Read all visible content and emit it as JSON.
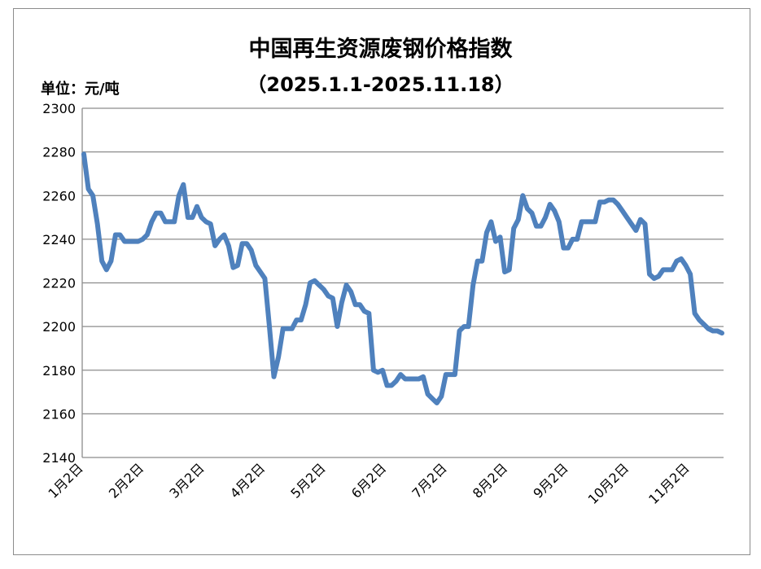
{
  "chart_data": {
    "type": "line",
    "title": "中国再生资源废钢价格指数",
    "subtitle": "（2025.1.1-2025.11.18）",
    "unit_label": "单位：元/吨",
    "xlabel": "",
    "ylabel": "",
    "ylim": [
      2140,
      2300
    ],
    "yticks": [
      2140,
      2160,
      2180,
      2200,
      2220,
      2240,
      2260,
      2280,
      2300
    ],
    "x_tick_labels": [
      "1月2日",
      "2月2日",
      "3月2日",
      "4月2日",
      "5月2日",
      "6月2日",
      "7月2日",
      "8月2日",
      "9月2日",
      "10月2日",
      "11月2日"
    ],
    "grid": true,
    "legend": "none",
    "colors": {
      "line": "#4f81bd",
      "grid": "#8c8c8c",
      "axis": "#8c8c8c"
    },
    "series": [
      {
        "values": [
          2279,
          2263,
          2260,
          2247,
          2230,
          2226,
          2230,
          2242,
          2242,
          2239,
          2239,
          2239,
          2239,
          2240,
          2242,
          2248,
          2252,
          2252,
          2248,
          2248,
          2248,
          2260,
          2265,
          2250,
          2250,
          2255,
          2250,
          2248,
          2247,
          2237,
          2240,
          2242,
          2237,
          2227,
          2228,
          2238,
          2238,
          2235,
          2228,
          2225,
          2222,
          2200,
          2177,
          2186,
          2199,
          2199,
          2199,
          2203,
          2203,
          2210,
          2220,
          2221,
          2219,
          2217,
          2214,
          2213,
          2200,
          2211,
          2219,
          2216,
          2210,
          2210,
          2207,
          2206,
          2180,
          2179,
          2180,
          2173,
          2173,
          2175,
          2178,
          2176,
          2176,
          2176,
          2176,
          2177,
          2169,
          2167,
          2165,
          2168,
          2178,
          2178,
          2178,
          2198,
          2200,
          2200,
          2219,
          2230,
          2230,
          2243,
          2248,
          2239,
          2241,
          2225,
          2226,
          2245,
          2249,
          2260,
          2254,
          2252,
          2246,
          2246,
          2250,
          2256,
          2253,
          2248,
          2236,
          2236,
          2240,
          2240,
          2248,
          2248,
          2248,
          2248,
          2257,
          2257,
          2258,
          2258,
          2256,
          2253,
          2250,
          2247,
          2244,
          2249,
          2247,
          2224,
          2222,
          2223,
          2226,
          2226,
          2226,
          2230,
          2231,
          2228,
          2224,
          2206,
          2203,
          2201,
          2199,
          2198,
          2198,
          2197
        ]
      }
    ]
  }
}
